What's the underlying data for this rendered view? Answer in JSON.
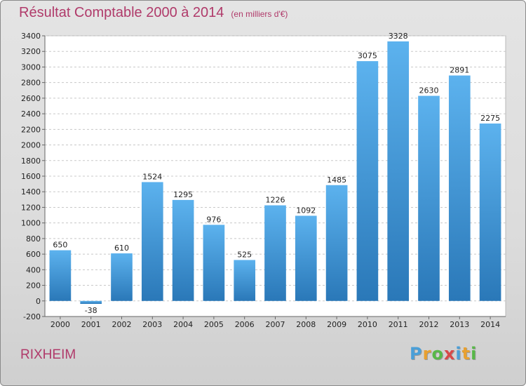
{
  "chart_data": {
    "type": "bar",
    "title": "Résultat Comptable 2000 à 2014",
    "subtitle": "(en milliers d'€)",
    "categories": [
      "2000",
      "2001",
      "2002",
      "2003",
      "2004",
      "2005",
      "2006",
      "2007",
      "2008",
      "2009",
      "2010",
      "2011",
      "2012",
      "2013",
      "2014"
    ],
    "values": [
      650,
      -38,
      610,
      1524,
      1295,
      976,
      525,
      1226,
      1092,
      1485,
      3075,
      3328,
      2630,
      2891,
      2275
    ],
    "ylim": [
      -200,
      3400
    ],
    "yticks": [
      -200,
      0,
      200,
      400,
      600,
      800,
      1000,
      1200,
      1400,
      1600,
      1800,
      2000,
      2200,
      2400,
      2600,
      2800,
      3000,
      3200,
      3400
    ],
    "grid": true,
    "bar_color": "#3a8fd4"
  },
  "footer": {
    "city": "RIXHEIM",
    "logo_letters": [
      "P",
      "r",
      "o",
      "x",
      "i",
      "t",
      "i"
    ],
    "logo_colors": [
      "#4a9fd8",
      "#e8a030",
      "#58b848",
      "#d84848",
      "#4a9fd8",
      "#e8a030",
      "#58b848"
    ]
  }
}
